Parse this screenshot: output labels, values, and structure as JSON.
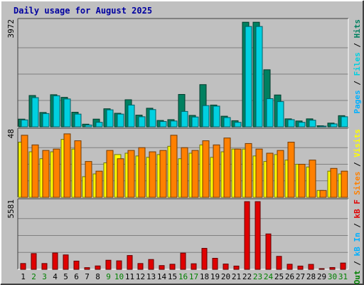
{
  "title": "Daily usage for August 2025",
  "colors": {
    "background": "#c0c0c0",
    "frame": "#ffffff",
    "title": "#0000a0",
    "hits": "#008060",
    "files": "#00d0e0",
    "pages": "#00b0ff",
    "visits": "#ffff00",
    "sites": "#ff8000",
    "kb": "#e00000",
    "grid": "#808080",
    "label": "#000000",
    "weekend": "#008000"
  },
  "chart_data": [
    {
      "type": "bar",
      "name": "hits-files-pages",
      "categories": [
        "1",
        "2",
        "3",
        "4",
        "5",
        "6",
        "7",
        "8",
        "9",
        "10",
        "11",
        "12",
        "13",
        "14",
        "15",
        "16",
        "17",
        "18",
        "19",
        "20",
        "21",
        "22",
        "23",
        "24",
        "25",
        "26",
        "27",
        "28",
        "29",
        "30",
        "31"
      ],
      "weekend_days": [
        "2",
        "3",
        "9",
        "10",
        "16",
        "17",
        "23",
        "24",
        "30",
        "31"
      ],
      "ymax_label": "3972",
      "ymax": 3972,
      "axis_label_parts": [
        {
          "text": "Hits",
          "series": "hits"
        },
        {
          "text": "Files",
          "series": "files"
        },
        {
          "text": "Pages",
          "series": "pages"
        }
      ],
      "series": [
        {
          "name": "Hits",
          "key": "hits",
          "values": [
            290,
            1180,
            540,
            1210,
            1110,
            550,
            100,
            290,
            680,
            510,
            1020,
            440,
            700,
            240,
            270,
            1220,
            430,
            1590,
            820,
            400,
            230,
            3940,
            3940,
            2150,
            1200,
            300,
            220,
            300,
            40,
            140,
            420
          ]
        },
        {
          "name": "Files",
          "key": "files",
          "values": [
            260,
            1100,
            500,
            1170,
            1050,
            480,
            70,
            170,
            640,
            480,
            820,
            380,
            650,
            200,
            220,
            580,
            370,
            800,
            780,
            350,
            170,
            3780,
            3780,
            1060,
            950,
            270,
            170,
            250,
            20,
            110,
            380
          ]
        }
      ]
    },
    {
      "type": "bar",
      "name": "visits-sites",
      "categories": [
        "1",
        "2",
        "3",
        "4",
        "5",
        "6",
        "7",
        "8",
        "9",
        "10",
        "11",
        "12",
        "13",
        "14",
        "15",
        "16",
        "17",
        "18",
        "19",
        "20",
        "21",
        "22",
        "23",
        "24",
        "25",
        "26",
        "27",
        "28",
        "29",
        "30",
        "31"
      ],
      "weekend_days": [
        "2",
        "3",
        "9",
        "10",
        "16",
        "17",
        "23",
        "24",
        "30",
        "31"
      ],
      "ymax_label": "48",
      "ymax": 48,
      "axis_label_parts": [
        {
          "text": "Visits",
          "series": "visits"
        },
        {
          "text": "Sites",
          "series": "sites"
        }
      ],
      "series": [
        {
          "name": "Visits",
          "key": "visits",
          "values": [
            40,
            33,
            28,
            33,
            42,
            35,
            15,
            17,
            25,
            31,
            32,
            30,
            29,
            31,
            37,
            28,
            32,
            38,
            29,
            33,
            35,
            35,
            30,
            26,
            31,
            27,
            24,
            22,
            5,
            19,
            17
          ]
        },
        {
          "name": "Sites",
          "key": "sites",
          "values": [
            45,
            38,
            34,
            35,
            46,
            41,
            26,
            19,
            34,
            28,
            34,
            36,
            33,
            34,
            45,
            36,
            34,
            41,
            38,
            43,
            35,
            39,
            35,
            32,
            34,
            40,
            24,
            27,
            5,
            21,
            19
          ]
        }
      ]
    },
    {
      "type": "bar",
      "name": "kbytes",
      "categories": [
        "1",
        "2",
        "3",
        "4",
        "5",
        "6",
        "7",
        "8",
        "9",
        "10",
        "11",
        "12",
        "13",
        "14",
        "15",
        "16",
        "17",
        "18",
        "19",
        "20",
        "21",
        "22",
        "23",
        "24",
        "25",
        "26",
        "27",
        "28",
        "29",
        "30",
        "31"
      ],
      "weekend_days": [
        "2",
        "3",
        "9",
        "10",
        "16",
        "17",
        "23",
        "24",
        "30",
        "31"
      ],
      "ymax_label": "5581",
      "ymax": 5581,
      "axis_label_parts": [
        {
          "text": "kB F",
          "series": "kb"
        },
        {
          "text": "kB In",
          "series": "pages"
        },
        {
          "text": "kB Out",
          "series": "weekend"
        }
      ],
      "series": [
        {
          "name": "kB F",
          "key": "kb",
          "values": [
            480,
            1300,
            480,
            1350,
            1190,
            680,
            140,
            280,
            750,
            700,
            1140,
            480,
            810,
            310,
            420,
            1340,
            460,
            1730,
            910,
            440,
            270,
            5581,
            5581,
            2920,
            1070,
            420,
            270,
            410,
            40,
            150,
            520
          ]
        }
      ]
    }
  ]
}
